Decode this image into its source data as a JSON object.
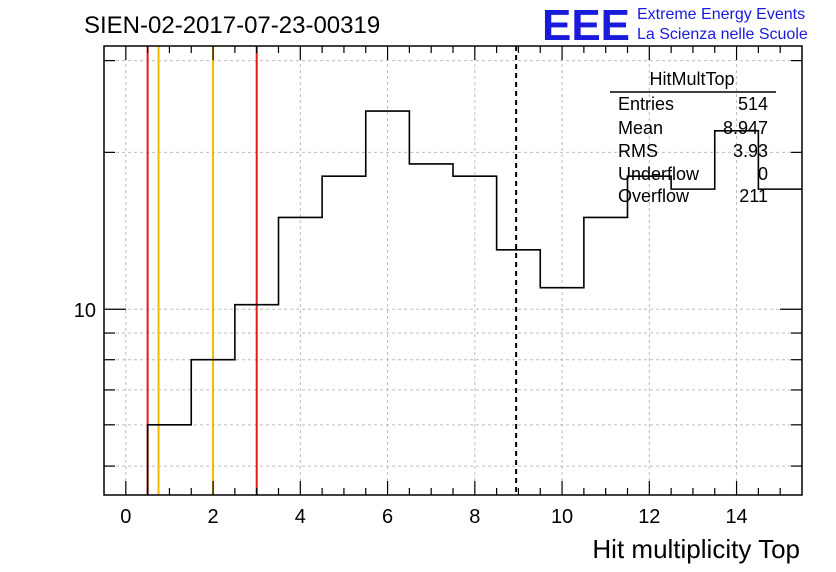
{
  "header": {
    "title": "SIEN-02-2017-07-23-00319",
    "logo_text": "EEE",
    "logo_line1": "Extreme Energy Events",
    "logo_line2": "La Scienza nelle Scuole"
  },
  "stats": {
    "name": "HitMultTop",
    "rows": [
      {
        "label": "Entries",
        "value": "514"
      },
      {
        "label": "Mean",
        "value": "8.947"
      },
      {
        "label": "RMS",
        "value": "3.93"
      },
      {
        "label": "Underflow",
        "value": "0"
      },
      {
        "label": "Overflow",
        "value": "211"
      }
    ]
  },
  "chart_data": {
    "type": "histogram",
    "xlabel": "Hit multiplicity Top",
    "ylabel": "",
    "xlim": [
      -0.5,
      15.5
    ],
    "ylim": [
      4.4,
      32
    ],
    "log_y": true,
    "grid": true,
    "bin_edges": [
      0.5,
      1.5,
      2.5,
      3.5,
      4.5,
      5.5,
      6.5,
      7.5,
      8.5,
      9.5,
      10.5,
      11.5,
      12.5,
      13.5,
      14.5,
      15.5
    ],
    "values": [
      6,
      8,
      10.2,
      15,
      18,
      24,
      19,
      18,
      13,
      11,
      15,
      18,
      17,
      22,
      17
    ],
    "x_ticks": [
      0,
      2,
      4,
      6,
      8,
      10,
      12,
      14
    ],
    "x_tick_labels": [
      "0",
      "2",
      "4",
      "6",
      "8",
      "10",
      "12",
      "14"
    ],
    "y_ticks": [
      10
    ],
    "y_tick_labels": [
      "10"
    ],
    "vertical_lines": [
      {
        "x": 0.5,
        "color": "#e31a1a",
        "style": "solid"
      },
      {
        "x": 0.75,
        "color": "#f5b800",
        "style": "solid"
      },
      {
        "x": 2.0,
        "color": "#f5b800",
        "style": "solid"
      },
      {
        "x": 3.0,
        "color": "#e31a1a",
        "style": "solid"
      },
      {
        "x": 8.947,
        "color": "#000000",
        "style": "dashed"
      }
    ],
    "line_color": "#000000"
  }
}
